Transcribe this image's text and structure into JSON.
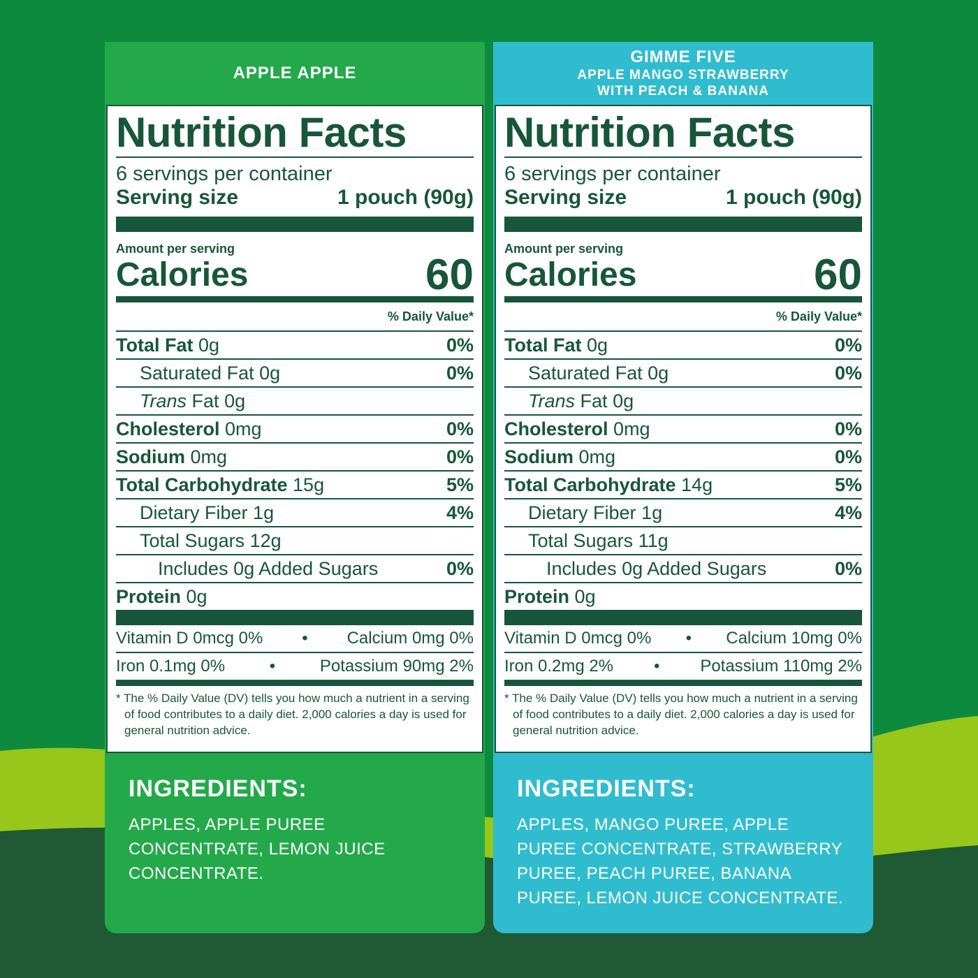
{
  "colors": {
    "bg_green": "#0e8a3e",
    "lime": "#97c71a",
    "dark_green": "#1f5a34",
    "left_panel": "#23a94a",
    "right_panel": "#2fbccf",
    "label_ink": "#17563a"
  },
  "products": [
    {
      "header": [
        "APPLE APPLE"
      ],
      "title": "Nutrition Facts",
      "servings": "6 servings per container",
      "serving_size_label": "Serving size",
      "serving_size_value": "1 pouch (90g)",
      "amount_per_serving": "Amount per serving",
      "calories_label": "Calories",
      "calories_value": "60",
      "dv_header": "% Daily Value*",
      "nutrients": [
        {
          "name": "Total Fat",
          "amount": "0g",
          "dv": "0%",
          "bold": true,
          "indent": 0
        },
        {
          "name": "Saturated Fat",
          "amount": "0g",
          "dv": "0%",
          "bold": false,
          "indent": 1
        },
        {
          "name": "Trans",
          "name2": "Fat",
          "amount": "0g",
          "dv": "",
          "bold": false,
          "indent": 1
        },
        {
          "name": "Cholesterol",
          "amount": "0mg",
          "dv": "0%",
          "bold": true,
          "indent": 0
        },
        {
          "name": "Sodium",
          "amount": "0mg",
          "dv": "0%",
          "bold": true,
          "indent": 0
        },
        {
          "name": "Total Carbohydrate",
          "amount": "15g",
          "dv": "5%",
          "bold": true,
          "indent": 0
        },
        {
          "name": "Dietary Fiber",
          "amount": "1g",
          "dv": "4%",
          "bold": false,
          "indent": 1
        },
        {
          "name": "Total Sugars",
          "amount": "12g",
          "dv": "",
          "bold": false,
          "indent": 1
        },
        {
          "name": "Includes 0g Added Sugars",
          "amount": "",
          "dv": "0%",
          "bold": false,
          "indent": 2
        },
        {
          "name": "Protein",
          "amount": "0g",
          "dv": "",
          "bold": true,
          "indent": 0
        }
      ],
      "vitamins": [
        {
          "left": "Vitamin D 0mcg 0%",
          "right": "Calcium 0mg 0%"
        },
        {
          "left": "Iron 0.1mg 0%",
          "right": "Potassium 90mg 2%"
        }
      ],
      "bullet": "•",
      "footnote": "* The % Daily Value (DV) tells you how much a nutrient in a serving of food contributes to a daily diet. 2,000 calories a day is used for general nutrition advice.",
      "ingredients_title": "INGREDIENTS:",
      "ingredients": "APPLES, APPLE PUREE CONCENTRATE, LEMON JUICE CONCENTRATE."
    },
    {
      "header": [
        "GIMME FIVE",
        "APPLE MANGO STRAWBERRY",
        "WITH PEACH & BANANA"
      ],
      "title": "Nutrition Facts",
      "servings": "6 servings per container",
      "serving_size_label": "Serving size",
      "serving_size_value": "1 pouch (90g)",
      "amount_per_serving": "Amount per serving",
      "calories_label": "Calories",
      "calories_value": "60",
      "dv_header": "% Daily Value*",
      "nutrients": [
        {
          "name": "Total Fat",
          "amount": "0g",
          "dv": "0%",
          "bold": true,
          "indent": 0
        },
        {
          "name": "Saturated Fat",
          "amount": "0g",
          "dv": "0%",
          "bold": false,
          "indent": 1
        },
        {
          "name": "Trans",
          "name2": "Fat",
          "amount": "0g",
          "dv": "",
          "bold": false,
          "indent": 1
        },
        {
          "name": "Cholesterol",
          "amount": "0mg",
          "dv": "0%",
          "bold": true,
          "indent": 0
        },
        {
          "name": "Sodium",
          "amount": "0mg",
          "dv": "0%",
          "bold": true,
          "indent": 0
        },
        {
          "name": "Total Carbohydrate",
          "amount": "14g",
          "dv": "5%",
          "bold": true,
          "indent": 0
        },
        {
          "name": "Dietary Fiber",
          "amount": "1g",
          "dv": "4%",
          "bold": false,
          "indent": 1
        },
        {
          "name": "Total Sugars",
          "amount": "11g",
          "dv": "",
          "bold": false,
          "indent": 1
        },
        {
          "name": "Includes 0g Added Sugars",
          "amount": "",
          "dv": "0%",
          "bold": false,
          "indent": 2
        },
        {
          "name": "Protein",
          "amount": "0g",
          "dv": "",
          "bold": true,
          "indent": 0
        }
      ],
      "vitamins": [
        {
          "left": "Vitamin D 0mcg 0%",
          "right": "Calcium 10mg 0%"
        },
        {
          "left": "Iron 0.2mg 2%",
          "right": "Potassium 110mg 2%"
        }
      ],
      "bullet": "•",
      "footnote": "* The % Daily Value (DV) tells you how much a nutrient in a serving of food contributes to a daily diet. 2,000 calories a day is used for general nutrition advice.",
      "ingredients_title": "INGREDIENTS:",
      "ingredients": "APPLES, MANGO PUREE, APPLE PUREE CONCENTRATE, STRAWBERRY PUREE, PEACH PUREE, BANANA PUREE, LEMON JUICE CONCENTRATE."
    }
  ]
}
